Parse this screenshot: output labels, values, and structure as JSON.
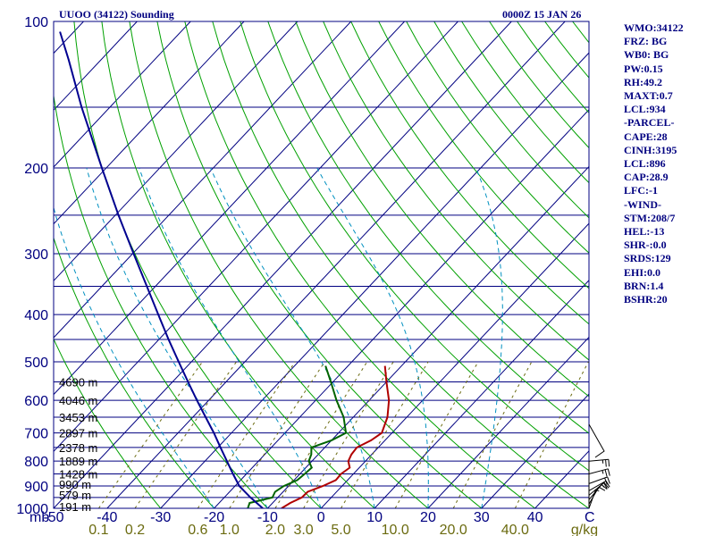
{
  "header": {
    "station": "UUOO (34122) Sounding",
    "time": "0000Z 15 JAN 26"
  },
  "stats": [
    "WMO:34122",
    "FRZ: BG",
    "WB0: BG",
    "PW:0.15",
    "RH:49.2",
    "MAXT:0.7",
    "LCL:934",
    "-PARCEL-",
    "CAPE:28",
    "CINH:3195",
    "LCL:896",
    "CAP:28.9",
    "LFC:-1",
    "-WIND-",
    "STM:208/7",
    "HEL:-13",
    "SHR-:0.0",
    "SRDS:129",
    "EHI:0.0",
    "BRN:1.4",
    "BSHR:20"
  ],
  "chart_data": {
    "type": "skew-t",
    "title": "UUOO (34122) Sounding",
    "x_axis": {
      "unit_label": "C",
      "ticks": [
        -50,
        -40,
        -30,
        -20,
        -10,
        0,
        10,
        20,
        30,
        40
      ],
      "tick_labels": [
        "-50",
        "-40",
        "-30",
        "-20",
        "-10",
        "0",
        "10",
        "20",
        "30",
        "40"
      ]
    },
    "y_axis": {
      "unit_label": "mb",
      "scale": "log",
      "range": [
        1000,
        100
      ],
      "ticks": [
        100,
        200,
        300,
        400,
        500,
        600,
        700,
        800,
        900,
        1000
      ],
      "tick_labels": [
        "100",
        "200",
        "300",
        "400",
        "500",
        "600",
        "700",
        "800",
        "900",
        "1000"
      ]
    },
    "mixing_ratio_axis": {
      "unit_label": "g/kg",
      "ticks": [
        0.1,
        0.2,
        0.6,
        1.0,
        2.0,
        3.0,
        5.0,
        10.0,
        20.0,
        40.0
      ],
      "tick_labels": [
        "0.1",
        "0.2",
        "0.6",
        "1.0",
        "2.0",
        "3.0",
        "5.0",
        "10.0",
        "20.0",
        "40.0"
      ]
    },
    "height_labels": [
      {
        "p": 992,
        "label": "191 m"
      },
      {
        "p": 938,
        "label": "579 m"
      },
      {
        "p": 893,
        "label": "990 m"
      },
      {
        "p": 850,
        "label": "1428 m"
      },
      {
        "p": 800,
        "label": "1889 m"
      },
      {
        "p": 750,
        "label": "2378 m"
      },
      {
        "p": 700,
        "label": "2897 m"
      },
      {
        "p": 650,
        "label": "3453 m"
      },
      {
        "p": 600,
        "label": "4046 m"
      },
      {
        "p": 550,
        "label": "4690 m"
      }
    ],
    "series": [
      {
        "name": "Temperature",
        "color": "#b00000",
        "points": [
          [
            1000,
            -7.4
          ],
          [
            975,
            -6.7
          ],
          [
            950,
            -5.5
          ],
          [
            925,
            -5.4
          ],
          [
            900,
            -3.6
          ],
          [
            875,
            -2.2
          ],
          [
            850,
            -2.3
          ],
          [
            825,
            -1.8
          ],
          [
            800,
            -3.2
          ],
          [
            775,
            -3.8
          ],
          [
            750,
            -4.0
          ],
          [
            725,
            -2.6
          ],
          [
            700,
            -1.9
          ],
          [
            650,
            -3.6
          ],
          [
            600,
            -6.3
          ],
          [
            550,
            -10.0
          ],
          [
            510,
            -13.1
          ]
        ]
      },
      {
        "name": "Dewpoint",
        "color": "#006400",
        "points": [
          [
            1000,
            -13.7
          ],
          [
            975,
            -14.3
          ],
          [
            950,
            -11.0
          ],
          [
            925,
            -11.5
          ],
          [
            900,
            -10.9
          ],
          [
            875,
            -9.4
          ],
          [
            850,
            -9.1
          ],
          [
            825,
            -8.9
          ],
          [
            800,
            -10.6
          ],
          [
            775,
            -11.3
          ],
          [
            750,
            -12.5
          ],
          [
            725,
            -10.0
          ],
          [
            700,
            -8.6
          ],
          [
            650,
            -11.8
          ],
          [
            600,
            -16.1
          ],
          [
            550,
            -20.4
          ],
          [
            510,
            -24.2
          ]
        ]
      },
      {
        "name": "Parcel",
        "color": "#000090",
        "points": [
          [
            1000,
            -10.9
          ],
          [
            950,
            -15.1
          ],
          [
            900,
            -19.2
          ],
          [
            850,
            -22.5
          ],
          [
            800,
            -25.9
          ],
          [
            750,
            -29.5
          ],
          [
            700,
            -33.3
          ],
          [
            650,
            -37.6
          ],
          [
            600,
            -42.2
          ],
          [
            550,
            -47.1
          ],
          [
            500,
            -52.4
          ],
          [
            450,
            -58.2
          ],
          [
            400,
            -64.5
          ],
          [
            350,
            -71.6
          ],
          [
            300,
            -79.8
          ],
          [
            250,
            -89.4
          ],
          [
            200,
            -100.8
          ],
          [
            150,
            -115.3
          ],
          [
            120,
            -126.0
          ],
          [
            105,
            -132.6
          ]
        ]
      }
    ],
    "wind_barbs": [
      {
        "p": 1000,
        "dir": 200,
        "spd_kt": 5
      },
      {
        "p": 980,
        "dir": 210,
        "spd_kt": 10
      },
      {
        "p": 960,
        "dir": 220,
        "spd_kt": 10
      },
      {
        "p": 940,
        "dir": 230,
        "spd_kt": 15
      },
      {
        "p": 920,
        "dir": 240,
        "spd_kt": 20
      },
      {
        "p": 890,
        "dir": 250,
        "spd_kt": 20
      },
      {
        "p": 850,
        "dir": 255,
        "spd_kt": 25
      },
      {
        "p": 800,
        "dir": 265,
        "spd_kt": 25
      }
    ],
    "colors": {
      "isobar": "#000080",
      "isotherm": "#000080",
      "dry_adiabat": "#00a000",
      "moist_adiabat": "#0090c0",
      "mixing_ratio": "#6b6b10",
      "frame": "#000080"
    }
  }
}
